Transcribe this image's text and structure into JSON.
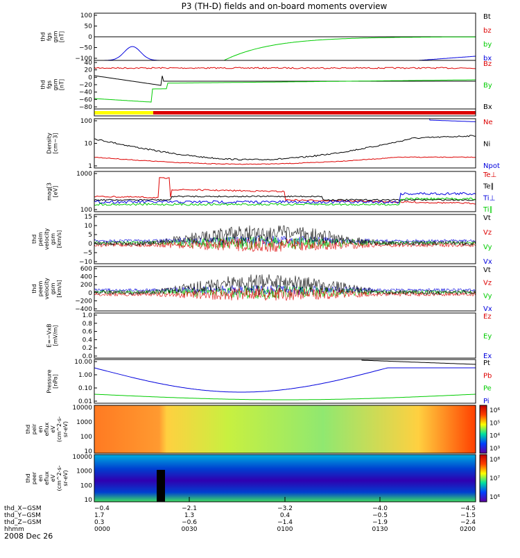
{
  "title": "P3 (TH-D) fields and on-board moments overview",
  "date": "2008 Dec 26",
  "colors": {
    "black": "#000000",
    "red": "#dd0000",
    "green": "#00cc00",
    "blue": "#0000dd",
    "yellow": "#ffff00"
  },
  "panels": [
    {
      "id": "fgs_sm",
      "ylabel": [
        "thd",
        "fgs",
        "gsm",
        "[nT]"
      ],
      "ticks": [
        "100",
        "50",
        "0",
        "−50",
        "−100"
      ],
      "legend": [
        {
          "t": "Bt",
          "c": "black"
        },
        {
          "t": "bz",
          "c": "red"
        },
        {
          "t": "by",
          "c": "green"
        },
        {
          "t": "bx",
          "c": "blue"
        }
      ]
    },
    {
      "id": "fgs",
      "ylabel": [
        "thd",
        "fgs",
        "gsm",
        "[nT]"
      ],
      "ticks": [
        "40",
        "20",
        "0",
        "−20",
        "−40",
        "−60",
        "−80"
      ],
      "legend": [
        {
          "t": "Bz",
          "c": "red"
        },
        {
          "t": "By",
          "c": "green"
        },
        {
          "t": "Bx",
          "c": "black"
        }
      ]
    },
    {
      "id": "mode",
      "ylabel": [],
      "ticks": [],
      "legend": []
    },
    {
      "id": "density",
      "ylabel": [
        "Density",
        "[cm−3]"
      ],
      "ticks": [
        "100",
        "10",
        "1"
      ],
      "legend": [
        {
          "t": "Ne",
          "c": "red"
        },
        {
          "t": "Ni",
          "c": "black"
        },
        {
          "t": "Npot",
          "c": "blue"
        }
      ]
    },
    {
      "id": "temp",
      "ylabel": [
        "mag[3",
        "[eV]"
      ],
      "ticks": [
        "1000",
        "100"
      ],
      "legend": [
        {
          "t": "Te⊥",
          "c": "red"
        },
        {
          "t": "Te∥",
          "c": "black"
        },
        {
          "t": "Ti⊥",
          "c": "blue"
        },
        {
          "t": "Ti∥",
          "c": "green"
        }
      ]
    },
    {
      "id": "vperp",
      "ylabel": [
        "thd",
        "peim",
        "velocity",
        "gsm",
        "[km/s]"
      ],
      "ticks": [
        "15",
        "10",
        "5",
        "0",
        "−5",
        "−10"
      ],
      "legend": [
        {
          "t": "Vt",
          "c": "black"
        },
        {
          "t": "Vz",
          "c": "red"
        },
        {
          "t": "Vy",
          "c": "green"
        },
        {
          "t": "Vx",
          "c": "blue"
        }
      ]
    },
    {
      "id": "vpeem",
      "ylabel": [
        "thd",
        "peem",
        "velocity",
        "gsm",
        "[km/s]"
      ],
      "ticks": [
        "600",
        "400",
        "200",
        "0",
        "−200",
        "−400"
      ],
      "legend": [
        {
          "t": "Vt",
          "c": "black"
        },
        {
          "t": "Vz",
          "c": "red"
        },
        {
          "t": "Vy",
          "c": "green"
        },
        {
          "t": "Vx",
          "c": "blue"
        }
      ]
    },
    {
      "id": "efield",
      "ylabel": [
        "E=−VxB",
        "[mV/m]"
      ],
      "ticks": [
        "1.0",
        "0.8",
        "0.6",
        "0.4",
        "0.2",
        "0.0"
      ],
      "legend": [
        {
          "t": "Ez",
          "c": "red"
        },
        {
          "t": "Ey",
          "c": "green"
        },
        {
          "t": "Ex",
          "c": "blue"
        }
      ]
    },
    {
      "id": "pressure",
      "ylabel": [
        "Pressure",
        "[nPa]"
      ],
      "ticks": [
        "10.00",
        "1.00",
        "0.10",
        "0.01"
      ],
      "legend": [
        {
          "t": "Pt",
          "c": "black"
        },
        {
          "t": "Pb",
          "c": "red"
        },
        {
          "t": "Pe",
          "c": "green"
        },
        {
          "t": "Pi",
          "c": "blue"
        }
      ]
    },
    {
      "id": "ion_spec",
      "ylabel": [
        "thd",
        "peir",
        "en",
        "eflux",
        "eV",
        "(cm^2-s-",
        "sr-eV)"
      ],
      "ticks": [
        "10000",
        "1000",
        "100",
        "10"
      ],
      "cbar": [
        "10⁶",
        "10⁵",
        "10⁴",
        "10³"
      ]
    },
    {
      "id": "elec_spec",
      "ylabel": [
        "thd",
        "peer",
        "en",
        "eflux",
        "eV",
        "(cm^2-s-",
        "sr-eV)"
      ],
      "ticks": [
        "10000",
        "1000",
        "100",
        "10"
      ],
      "cbar": [
        "10⁸",
        "10⁷",
        "10⁶"
      ]
    }
  ],
  "xaxis": {
    "rows": [
      {
        "label": "thd_X−GSM",
        "values": [
          "−0.4",
          "−2.1",
          "−3.2",
          "−4.0",
          "−4.5"
        ]
      },
      {
        "label": "thd_Y−GSM",
        "values": [
          "1.7",
          "1.3",
          "0.4",
          "−0.5",
          "−1.5"
        ]
      },
      {
        "label": "thd_Z−GSM",
        "values": [
          "0.3",
          "−0.6",
          "−1.4",
          "−1.9",
          "−2.4"
        ]
      },
      {
        "label": "hhmm",
        "values": [
          "0000",
          "0030",
          "0100",
          "0130",
          "0200"
        ]
      }
    ]
  }
}
